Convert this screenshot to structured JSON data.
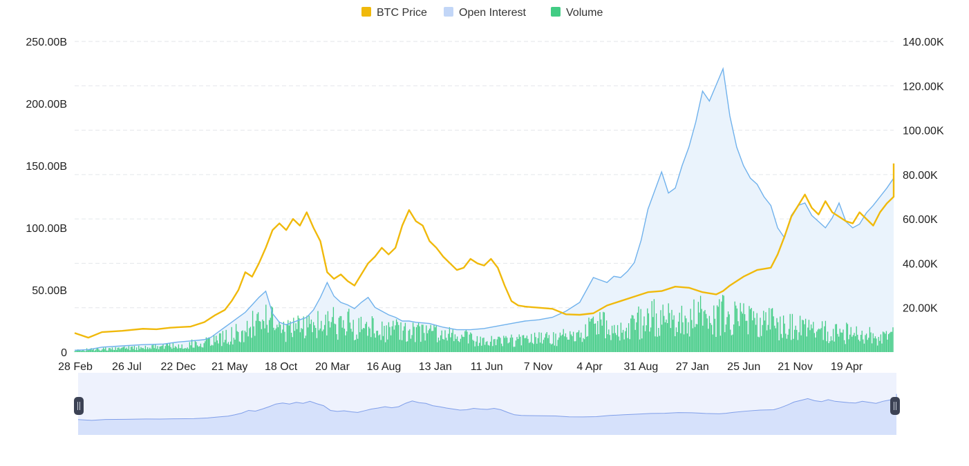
{
  "colors": {
    "price": "#f0b90b",
    "open_interest": "#6fb1ec",
    "open_interest_fill": "#eaf3fc",
    "volume": "#42cc84",
    "grid": "#e3e6ea",
    "slider_bg": "#eef2fd",
    "slider_fill": "#d6e1fb",
    "slider_line": "#7f9ee9",
    "handle": "#3c4254"
  },
  "chart_data": {
    "type": "line",
    "legend": {
      "position": "top-center",
      "entries": [
        "BTC Price",
        "Open Interest",
        "Volume"
      ]
    },
    "x_tick_labels": [
      "28 Feb",
      "26 Jul",
      "22 Dec",
      "21 May",
      "18 Oct",
      "20 Mar",
      "16 Aug",
      "13 Jan",
      "11 Jun",
      "7 Nov",
      "4 Apr",
      "31 Aug",
      "27 Jan",
      "25 Jun",
      "21 Nov",
      "19 Apr"
    ],
    "y_left": {
      "range": [
        0,
        250000000000
      ],
      "tick_labels": [
        "0",
        "50.00B",
        "100.00B",
        "150.00B",
        "200.00B",
        "250.00B"
      ]
    },
    "y_right": {
      "range": [
        0,
        140000
      ],
      "tick_labels": [
        "20.00K",
        "40.00K",
        "60.00K",
        "80.00K",
        "100.00K",
        "120.00K",
        "140.00K"
      ]
    },
    "grid": true,
    "x_index_range": [
      0,
      240
    ],
    "series": [
      {
        "name": "BTC Price",
        "axis": "right",
        "points": [
          [
            0,
            8600
          ],
          [
            4,
            6500
          ],
          [
            8,
            9000
          ],
          [
            14,
            9600
          ],
          [
            20,
            10500
          ],
          [
            24,
            10300
          ],
          [
            28,
            11000
          ],
          [
            34,
            11500
          ],
          [
            38,
            13500
          ],
          [
            41,
            16500
          ],
          [
            44,
            19000
          ],
          [
            46,
            23000
          ],
          [
            48,
            28000
          ],
          [
            50,
            36000
          ],
          [
            52,
            34000
          ],
          [
            54,
            40000
          ],
          [
            56,
            47000
          ],
          [
            58,
            55000
          ],
          [
            60,
            58000
          ],
          [
            62,
            55000
          ],
          [
            64,
            60000
          ],
          [
            66,
            57000
          ],
          [
            68,
            63000
          ],
          [
            70,
            56000
          ],
          [
            72,
            50000
          ],
          [
            74,
            36000
          ],
          [
            76,
            33000
          ],
          [
            78,
            35000
          ],
          [
            80,
            32000
          ],
          [
            82,
            30000
          ],
          [
            84,
            35000
          ],
          [
            86,
            40000
          ],
          [
            88,
            43000
          ],
          [
            90,
            47000
          ],
          [
            92,
            44000
          ],
          [
            94,
            47000
          ],
          [
            96,
            57000
          ],
          [
            98,
            64000
          ],
          [
            100,
            59000
          ],
          [
            102,
            57000
          ],
          [
            104,
            50000
          ],
          [
            106,
            47000
          ],
          [
            108,
            43000
          ],
          [
            110,
            40000
          ],
          [
            112,
            37000
          ],
          [
            114,
            38000
          ],
          [
            116,
            42000
          ],
          [
            118,
            40000
          ],
          [
            120,
            39000
          ],
          [
            122,
            42000
          ],
          [
            124,
            38000
          ],
          [
            126,
            30000
          ],
          [
            128,
            23000
          ],
          [
            130,
            21000
          ],
          [
            132,
            20500
          ],
          [
            136,
            20000
          ],
          [
            140,
            19500
          ],
          [
            144,
            17000
          ],
          [
            148,
            16800
          ],
          [
            152,
            17500
          ],
          [
            156,
            21000
          ],
          [
            160,
            23000
          ],
          [
            164,
            25000
          ],
          [
            168,
            27000
          ],
          [
            172,
            27500
          ],
          [
            176,
            29500
          ],
          [
            180,
            29000
          ],
          [
            184,
            27000
          ],
          [
            188,
            26000
          ],
          [
            190,
            27500
          ],
          [
            192,
            30000
          ],
          [
            196,
            34000
          ],
          [
            200,
            37000
          ],
          [
            204,
            38000
          ],
          [
            206,
            44000
          ],
          [
            208,
            52000
          ],
          [
            210,
            61000
          ],
          [
            212,
            66000
          ],
          [
            214,
            71000
          ],
          [
            216,
            65000
          ],
          [
            218,
            62000
          ],
          [
            220,
            68000
          ],
          [
            222,
            63000
          ],
          [
            224,
            61000
          ],
          [
            226,
            59000
          ],
          [
            228,
            58000
          ],
          [
            230,
            63000
          ],
          [
            232,
            60000
          ],
          [
            234,
            57000
          ],
          [
            236,
            63000
          ],
          [
            238,
            67000
          ],
          [
            240,
            70000
          ],
          [
            242,
            85000
          ]
        ]
      },
      {
        "name": "Open Interest",
        "axis": "left",
        "points": [
          [
            0,
            1500000000
          ],
          [
            4,
            2000000000
          ],
          [
            8,
            4000000000
          ],
          [
            14,
            5000000000
          ],
          [
            20,
            6000000000
          ],
          [
            26,
            6500000000
          ],
          [
            30,
            8000000000
          ],
          [
            34,
            9000000000
          ],
          [
            38,
            10000000000
          ],
          [
            40,
            12000000000
          ],
          [
            42,
            16000000000
          ],
          [
            44,
            20000000000
          ],
          [
            46,
            24000000000
          ],
          [
            48,
            28000000000
          ],
          [
            50,
            32000000000
          ],
          [
            52,
            38000000000
          ],
          [
            54,
            44000000000
          ],
          [
            56,
            49000000000
          ],
          [
            58,
            31000000000
          ],
          [
            60,
            24000000000
          ],
          [
            62,
            22000000000
          ],
          [
            64,
            24000000000
          ],
          [
            66,
            26000000000
          ],
          [
            68,
            28000000000
          ],
          [
            70,
            34000000000
          ],
          [
            72,
            44000000000
          ],
          [
            74,
            56000000000
          ],
          [
            76,
            45000000000
          ],
          [
            78,
            40000000000
          ],
          [
            80,
            38000000000
          ],
          [
            82,
            35000000000
          ],
          [
            84,
            40000000000
          ],
          [
            86,
            44000000000
          ],
          [
            88,
            36000000000
          ],
          [
            90,
            33000000000
          ],
          [
            92,
            30000000000
          ],
          [
            94,
            28000000000
          ],
          [
            96,
            25000000000
          ],
          [
            98,
            25000000000
          ],
          [
            100,
            24000000000
          ],
          [
            104,
            23000000000
          ],
          [
            108,
            20000000000
          ],
          [
            112,
            18000000000
          ],
          [
            116,
            18000000000
          ],
          [
            120,
            19000000000
          ],
          [
            124,
            21000000000
          ],
          [
            128,
            23000000000
          ],
          [
            132,
            25000000000
          ],
          [
            136,
            26000000000
          ],
          [
            140,
            28000000000
          ],
          [
            144,
            33000000000
          ],
          [
            148,
            40000000000
          ],
          [
            150,
            50000000000
          ],
          [
            152,
            60000000000
          ],
          [
            154,
            58000000000
          ],
          [
            156,
            56000000000
          ],
          [
            158,
            61000000000
          ],
          [
            160,
            60000000000
          ],
          [
            162,
            65000000000
          ],
          [
            164,
            72000000000
          ],
          [
            166,
            90000000000
          ],
          [
            168,
            115000000000
          ],
          [
            170,
            130000000000
          ],
          [
            172,
            145000000000
          ],
          [
            174,
            128000000000
          ],
          [
            176,
            132000000000
          ],
          [
            178,
            150000000000
          ],
          [
            180,
            165000000000
          ],
          [
            182,
            185000000000
          ],
          [
            184,
            210000000000
          ],
          [
            186,
            202000000000
          ],
          [
            188,
            215000000000
          ],
          [
            190,
            228000000000
          ],
          [
            192,
            190000000000
          ],
          [
            194,
            165000000000
          ],
          [
            196,
            150000000000
          ],
          [
            198,
            140000000000
          ],
          [
            200,
            135000000000
          ],
          [
            202,
            125000000000
          ],
          [
            204,
            118000000000
          ],
          [
            206,
            100000000000
          ],
          [
            208,
            92000000000
          ],
          [
            210,
            110000000000
          ],
          [
            212,
            118000000000
          ],
          [
            214,
            120000000000
          ],
          [
            216,
            110000000000
          ],
          [
            218,
            105000000000
          ],
          [
            220,
            100000000000
          ],
          [
            222,
            108000000000
          ],
          [
            224,
            120000000000
          ],
          [
            226,
            105000000000
          ],
          [
            228,
            100000000000
          ],
          [
            230,
            103000000000
          ],
          [
            232,
            112000000000
          ],
          [
            234,
            118000000000
          ],
          [
            236,
            125000000000
          ],
          [
            238,
            132000000000
          ],
          [
            240,
            140000000000
          ],
          [
            242,
            143000000000
          ]
        ]
      },
      {
        "name": "Volume",
        "axis": "left",
        "points": [
          [
            0,
            2000000000
          ],
          [
            10,
            3000000000
          ],
          [
            20,
            4000000000
          ],
          [
            30,
            6000000000
          ],
          [
            38,
            9000000000
          ],
          [
            44,
            14000000000
          ],
          [
            50,
            22000000000
          ],
          [
            56,
            30000000000
          ],
          [
            60,
            24000000000
          ],
          [
            64,
            22000000000
          ],
          [
            70,
            24000000000
          ],
          [
            76,
            28000000000
          ],
          [
            82,
            26000000000
          ],
          [
            88,
            22000000000
          ],
          [
            94,
            20000000000
          ],
          [
            100,
            18000000000
          ],
          [
            106,
            17000000000
          ],
          [
            112,
            15000000000
          ],
          [
            118,
            12000000000
          ],
          [
            124,
            11000000000
          ],
          [
            130,
            11000000000
          ],
          [
            136,
            12000000000
          ],
          [
            142,
            13000000000
          ],
          [
            148,
            18000000000
          ],
          [
            154,
            24000000000
          ],
          [
            160,
            26000000000
          ],
          [
            166,
            28000000000
          ],
          [
            170,
            32000000000
          ],
          [
            174,
            30000000000
          ],
          [
            178,
            32000000000
          ],
          [
            184,
            34000000000
          ],
          [
            190,
            35000000000
          ],
          [
            196,
            30000000000
          ],
          [
            202,
            28000000000
          ],
          [
            208,
            24000000000
          ],
          [
            214,
            22000000000
          ],
          [
            220,
            20000000000
          ],
          [
            226,
            18000000000
          ],
          [
            232,
            16000000000
          ],
          [
            238,
            14000000000
          ],
          [
            242,
            18000000000
          ]
        ]
      }
    ]
  }
}
